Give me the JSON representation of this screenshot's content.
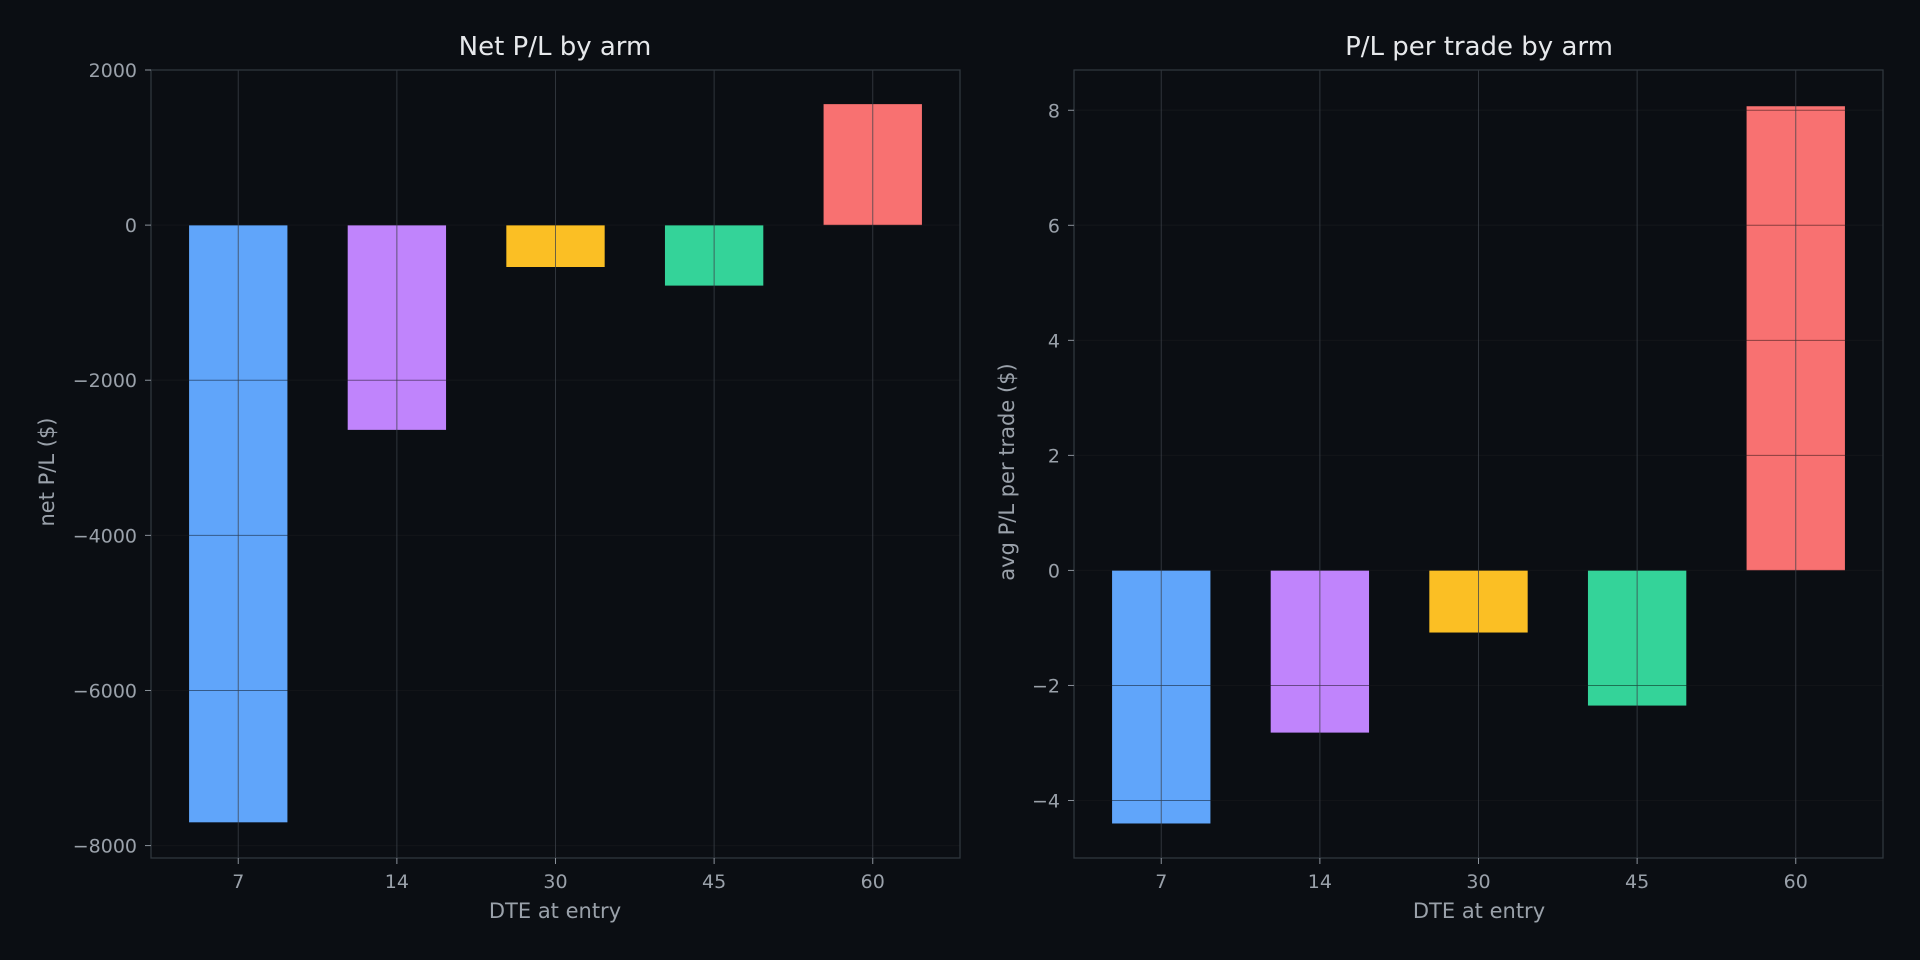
{
  "chart_data": [
    {
      "type": "bar",
      "title": "Net P/L by arm",
      "xlabel": "DTE at entry",
      "ylabel": "net P/L ($)",
      "categories": [
        "7",
        "14",
        "30",
        "45",
        "60"
      ],
      "values": [
        -7700,
        -2640,
        -540,
        -780,
        1560
      ],
      "colors": [
        "#60a5fa",
        "#c084fc",
        "#fbbf24",
        "#34d399",
        "#f87171"
      ],
      "ylim": [
        -8160,
        2000
      ],
      "yticks": [
        2000,
        0,
        -2000,
        -4000,
        -6000,
        -8000
      ],
      "ytick_labels": [
        "2000",
        "0",
        "−2000",
        "−4000",
        "−6000",
        "−8000"
      ],
      "grid": true
    },
    {
      "type": "bar",
      "title": "P/L per trade by arm",
      "xlabel": "DTE at entry",
      "ylabel": "avg P/L per trade ($)",
      "categories": [
        "7",
        "14",
        "30",
        "45",
        "60"
      ],
      "values": [
        -4.4,
        -2.82,
        -1.08,
        -2.35,
        8.07
      ],
      "colors": [
        "#60a5fa",
        "#c084fc",
        "#fbbf24",
        "#34d399",
        "#f87171"
      ],
      "ylim": [
        -5.0,
        8.7
      ],
      "yticks": [
        8,
        6,
        4,
        2,
        0,
        -2,
        -4
      ],
      "ytick_labels": [
        "8",
        "6",
        "4",
        "2",
        "0",
        "−2",
        "−4"
      ],
      "grid": true
    }
  ],
  "colors": {
    "background": "#0b0e13",
    "axes_edge": "#30363d",
    "grid": "#21262d",
    "text": "#e6e8eb",
    "muted_text": "#9aa1aa"
  }
}
